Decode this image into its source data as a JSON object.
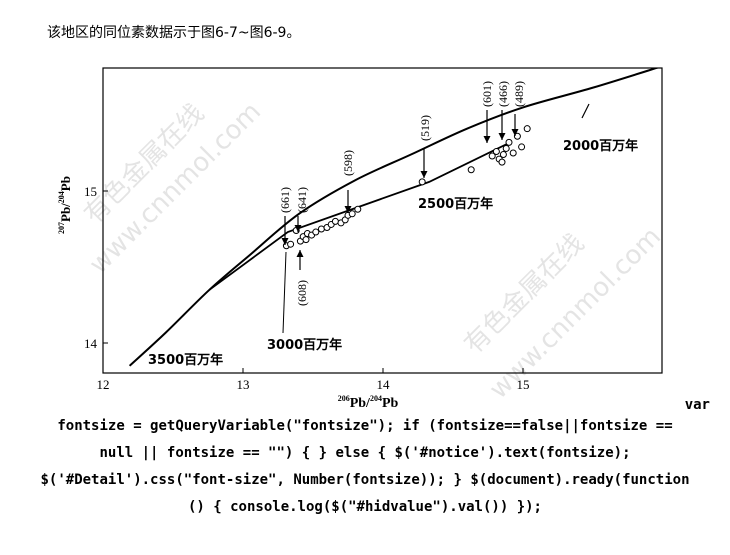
{
  "intro_text": "该地区的同位素数据示于图6-7~图6-9。",
  "watermark": {
    "text1": "有色金属在线",
    "text2": "www.cnnmol.com"
  },
  "chart_data": {
    "type": "scatter",
    "xlabel_parts": {
      "sup1": "206",
      "base1": "Pb/",
      "sup2": "204",
      "base2": "Pb"
    },
    "ylabel_parts": {
      "sup1": "207",
      "base1": "Pb/",
      "sup2": "204",
      "base2": "Pb"
    },
    "xlim": [
      12,
      15.99
    ],
    "ylim": [
      13.97,
      15.81
    ],
    "x_ticks": [
      12,
      13,
      14,
      15
    ],
    "y_ticks": [
      14,
      15
    ],
    "x_tick_labels": [
      "12",
      "13",
      "14",
      "15"
    ],
    "y_tick_labels": [
      "14",
      "15"
    ],
    "curve": [
      [
        12.19,
        13.85
      ],
      [
        12.45,
        14.07
      ],
      [
        12.76,
        14.35
      ],
      [
        13.05,
        14.58
      ],
      [
        13.4,
        14.85
      ],
      [
        13.8,
        15.07
      ],
      [
        14.2,
        15.24
      ],
      [
        14.6,
        15.41
      ],
      [
        15.0,
        15.55
      ],
      [
        15.5,
        15.68
      ],
      [
        15.99,
        15.82
      ]
    ],
    "isochron": [
      [
        12.76,
        14.35
      ],
      [
        13.32,
        14.73
      ],
      [
        14.33,
        15.06
      ],
      [
        14.91,
        15.32
      ]
    ],
    "points": [
      [
        13.31,
        14.64
      ],
      [
        13.34,
        14.65
      ],
      [
        13.38,
        14.74
      ],
      [
        13.41,
        14.67
      ],
      [
        13.43,
        14.7
      ],
      [
        13.45,
        14.68
      ],
      [
        13.46,
        14.72
      ],
      [
        13.49,
        14.71
      ],
      [
        13.52,
        14.73
      ],
      [
        13.56,
        14.75
      ],
      [
        13.6,
        14.76
      ],
      [
        13.63,
        14.78
      ],
      [
        13.66,
        14.8
      ],
      [
        13.7,
        14.79
      ],
      [
        13.73,
        14.81
      ],
      [
        13.75,
        14.84
      ],
      [
        13.78,
        14.85
      ],
      [
        13.82,
        14.88
      ],
      [
        14.28,
        15.06
      ],
      [
        14.63,
        15.14
      ],
      [
        14.78,
        15.23
      ],
      [
        14.81,
        15.26
      ],
      [
        14.83,
        15.21
      ],
      [
        14.85,
        15.19
      ],
      [
        14.86,
        15.24
      ],
      [
        14.88,
        15.28
      ],
      [
        14.9,
        15.32
      ],
      [
        14.93,
        15.25
      ],
      [
        14.96,
        15.36
      ],
      [
        14.99,
        15.29
      ],
      [
        15.03,
        15.41
      ]
    ],
    "labels": [
      {
        "text": "3500百万年"
      },
      {
        "text": "3000百万年"
      },
      {
        "text": "2500百万年"
      },
      {
        "text": "2000百万年"
      }
    ],
    "callouts": [
      {
        "text": "(661)"
      },
      {
        "text": "(641)"
      },
      {
        "text": "(598)"
      },
      {
        "text": "(608)"
      },
      {
        "text": "(519)"
      },
      {
        "text": "(601)"
      },
      {
        "text": "(466)"
      },
      {
        "text": "(489)"
      }
    ]
  },
  "code_lines": [
    "var",
    "fontsize = getQueryVariable(\"fontsize\"); if (fontsize==false||fontsize ==",
    "null || fontsize == \"\") { } else { $('#notice').text(fontsize);",
    "$('#Detail').css(\"font-size\", Number(fontsize)); } $(document).ready(function",
    "() { console.log($(\"#hidvalue\").val()) });"
  ]
}
